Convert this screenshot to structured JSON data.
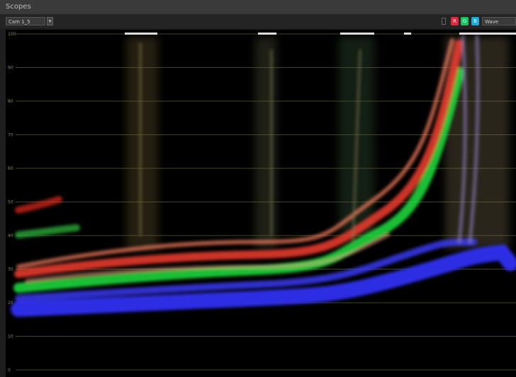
{
  "window": {
    "title": "Scopes"
  },
  "toolbar": {
    "source": "Cam 1_5",
    "channels": [
      "R",
      "G",
      "B"
    ],
    "mode": "Wave"
  },
  "scale": {
    "labels": [
      "100",
      "90",
      "80",
      "70",
      "60",
      "50",
      "40",
      "30",
      "20",
      "10",
      "0"
    ]
  }
}
